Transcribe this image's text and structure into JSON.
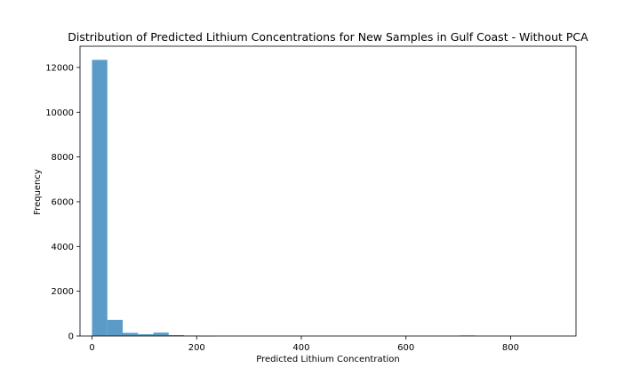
{
  "chart_data": {
    "type": "bar",
    "title": "Distribution of Predicted Lithium Concentrations for New Samples in Gulf Coast - Without PCA",
    "xlabel": "Predicted Lithium Concentration",
    "ylabel": "Frequency",
    "xlim": [
      -23,
      925
    ],
    "ylim": [
      0,
      12950
    ],
    "x_ticks": [
      0,
      200,
      400,
      600,
      800
    ],
    "y_ticks": [
      0,
      2000,
      4000,
      6000,
      8000,
      10000,
      12000
    ],
    "grid": false,
    "bar_color": "#5a9bc8",
    "bin_edges": [
      0,
      29.3,
      58.6,
      87.9,
      117.2,
      146.5,
      175.8,
      205.1,
      234.4,
      263.7,
      293.0,
      322.3,
      351.6,
      380.9,
      410.2,
      439.5,
      468.8,
      498.1,
      527.4,
      556.7,
      586.0,
      615.3,
      644.6,
      673.9,
      703.2,
      732.5,
      761.8,
      791.1,
      820.4,
      849.7,
      879.0
    ],
    "values": [
      12340,
      720,
      140,
      80,
      150,
      40,
      20,
      5,
      0,
      0,
      0,
      0,
      0,
      0,
      0,
      0,
      0,
      0,
      0,
      0,
      0,
      0,
      0,
      0,
      25,
      0,
      0,
      0,
      0,
      0
    ]
  }
}
